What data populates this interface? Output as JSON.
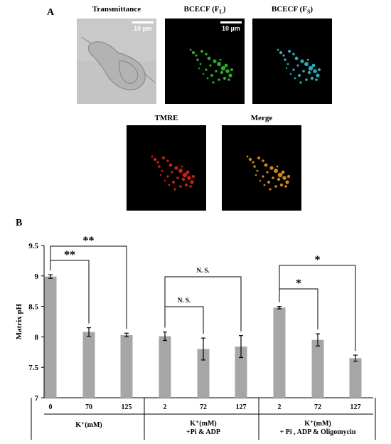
{
  "panel_a": {
    "letter": "A",
    "images": [
      {
        "title": "Transmittance",
        "title_sub": "",
        "kind": "bright",
        "scale_label": "10 µm"
      },
      {
        "title": "BCECF (F",
        "title_sub": "L",
        "kind": "green",
        "scale_label": "10 µm"
      },
      {
        "title": "BCECF (F",
        "title_sub": "S",
        "kind": "cyan",
        "scale_label": ""
      },
      {
        "title": "TMRE",
        "title_sub": "",
        "kind": "red",
        "scale_label": ""
      },
      {
        "title": "Merge",
        "title_sub": "",
        "kind": "orange",
        "scale_label": ""
      }
    ],
    "colors": {
      "green": "#32c832",
      "cyan": "#36c8d6",
      "red": "#e62a1a",
      "orange": "#f0a020"
    }
  },
  "panel_b": {
    "letter": "B"
  },
  "chart_data": {
    "type": "bar",
    "ylabel": "Matrix pH",
    "ylim": [
      7,
      9.5
    ],
    "yticks": [
      "7",
      "7.5",
      "8",
      "8.5",
      "9",
      "9.5"
    ],
    "categories": [
      "0",
      "70",
      "125",
      "2",
      "72",
      "127",
      "2",
      "72",
      "127"
    ],
    "values": [
      8.99,
      8.08,
      8.03,
      8.01,
      7.8,
      7.84,
      8.48,
      7.95,
      7.65
    ],
    "errors": [
      0.03,
      0.07,
      0.03,
      0.07,
      0.18,
      0.18,
      0.02,
      0.1,
      0.05
    ],
    "bar_color": "#a6a6a6",
    "groups": [
      {
        "line1": "K⁺(mM)",
        "line2": ""
      },
      {
        "line1": "K⁺(mM)",
        "line2": "+Pi & ADP"
      },
      {
        "line1": "K⁺(mM)",
        "line2": "+ Pi , ADP & Oligomycin"
      }
    ],
    "significance": [
      {
        "from": 0,
        "to": 2,
        "label": "**"
      },
      {
        "from": 0,
        "to": 1,
        "label": "**"
      },
      {
        "from": 3,
        "to": 5,
        "label": "N. S."
      },
      {
        "from": 3,
        "to": 4,
        "label": "N. S."
      },
      {
        "from": 6,
        "to": 8,
        "label": "*"
      },
      {
        "from": 6,
        "to": 7,
        "label": "*"
      }
    ]
  }
}
